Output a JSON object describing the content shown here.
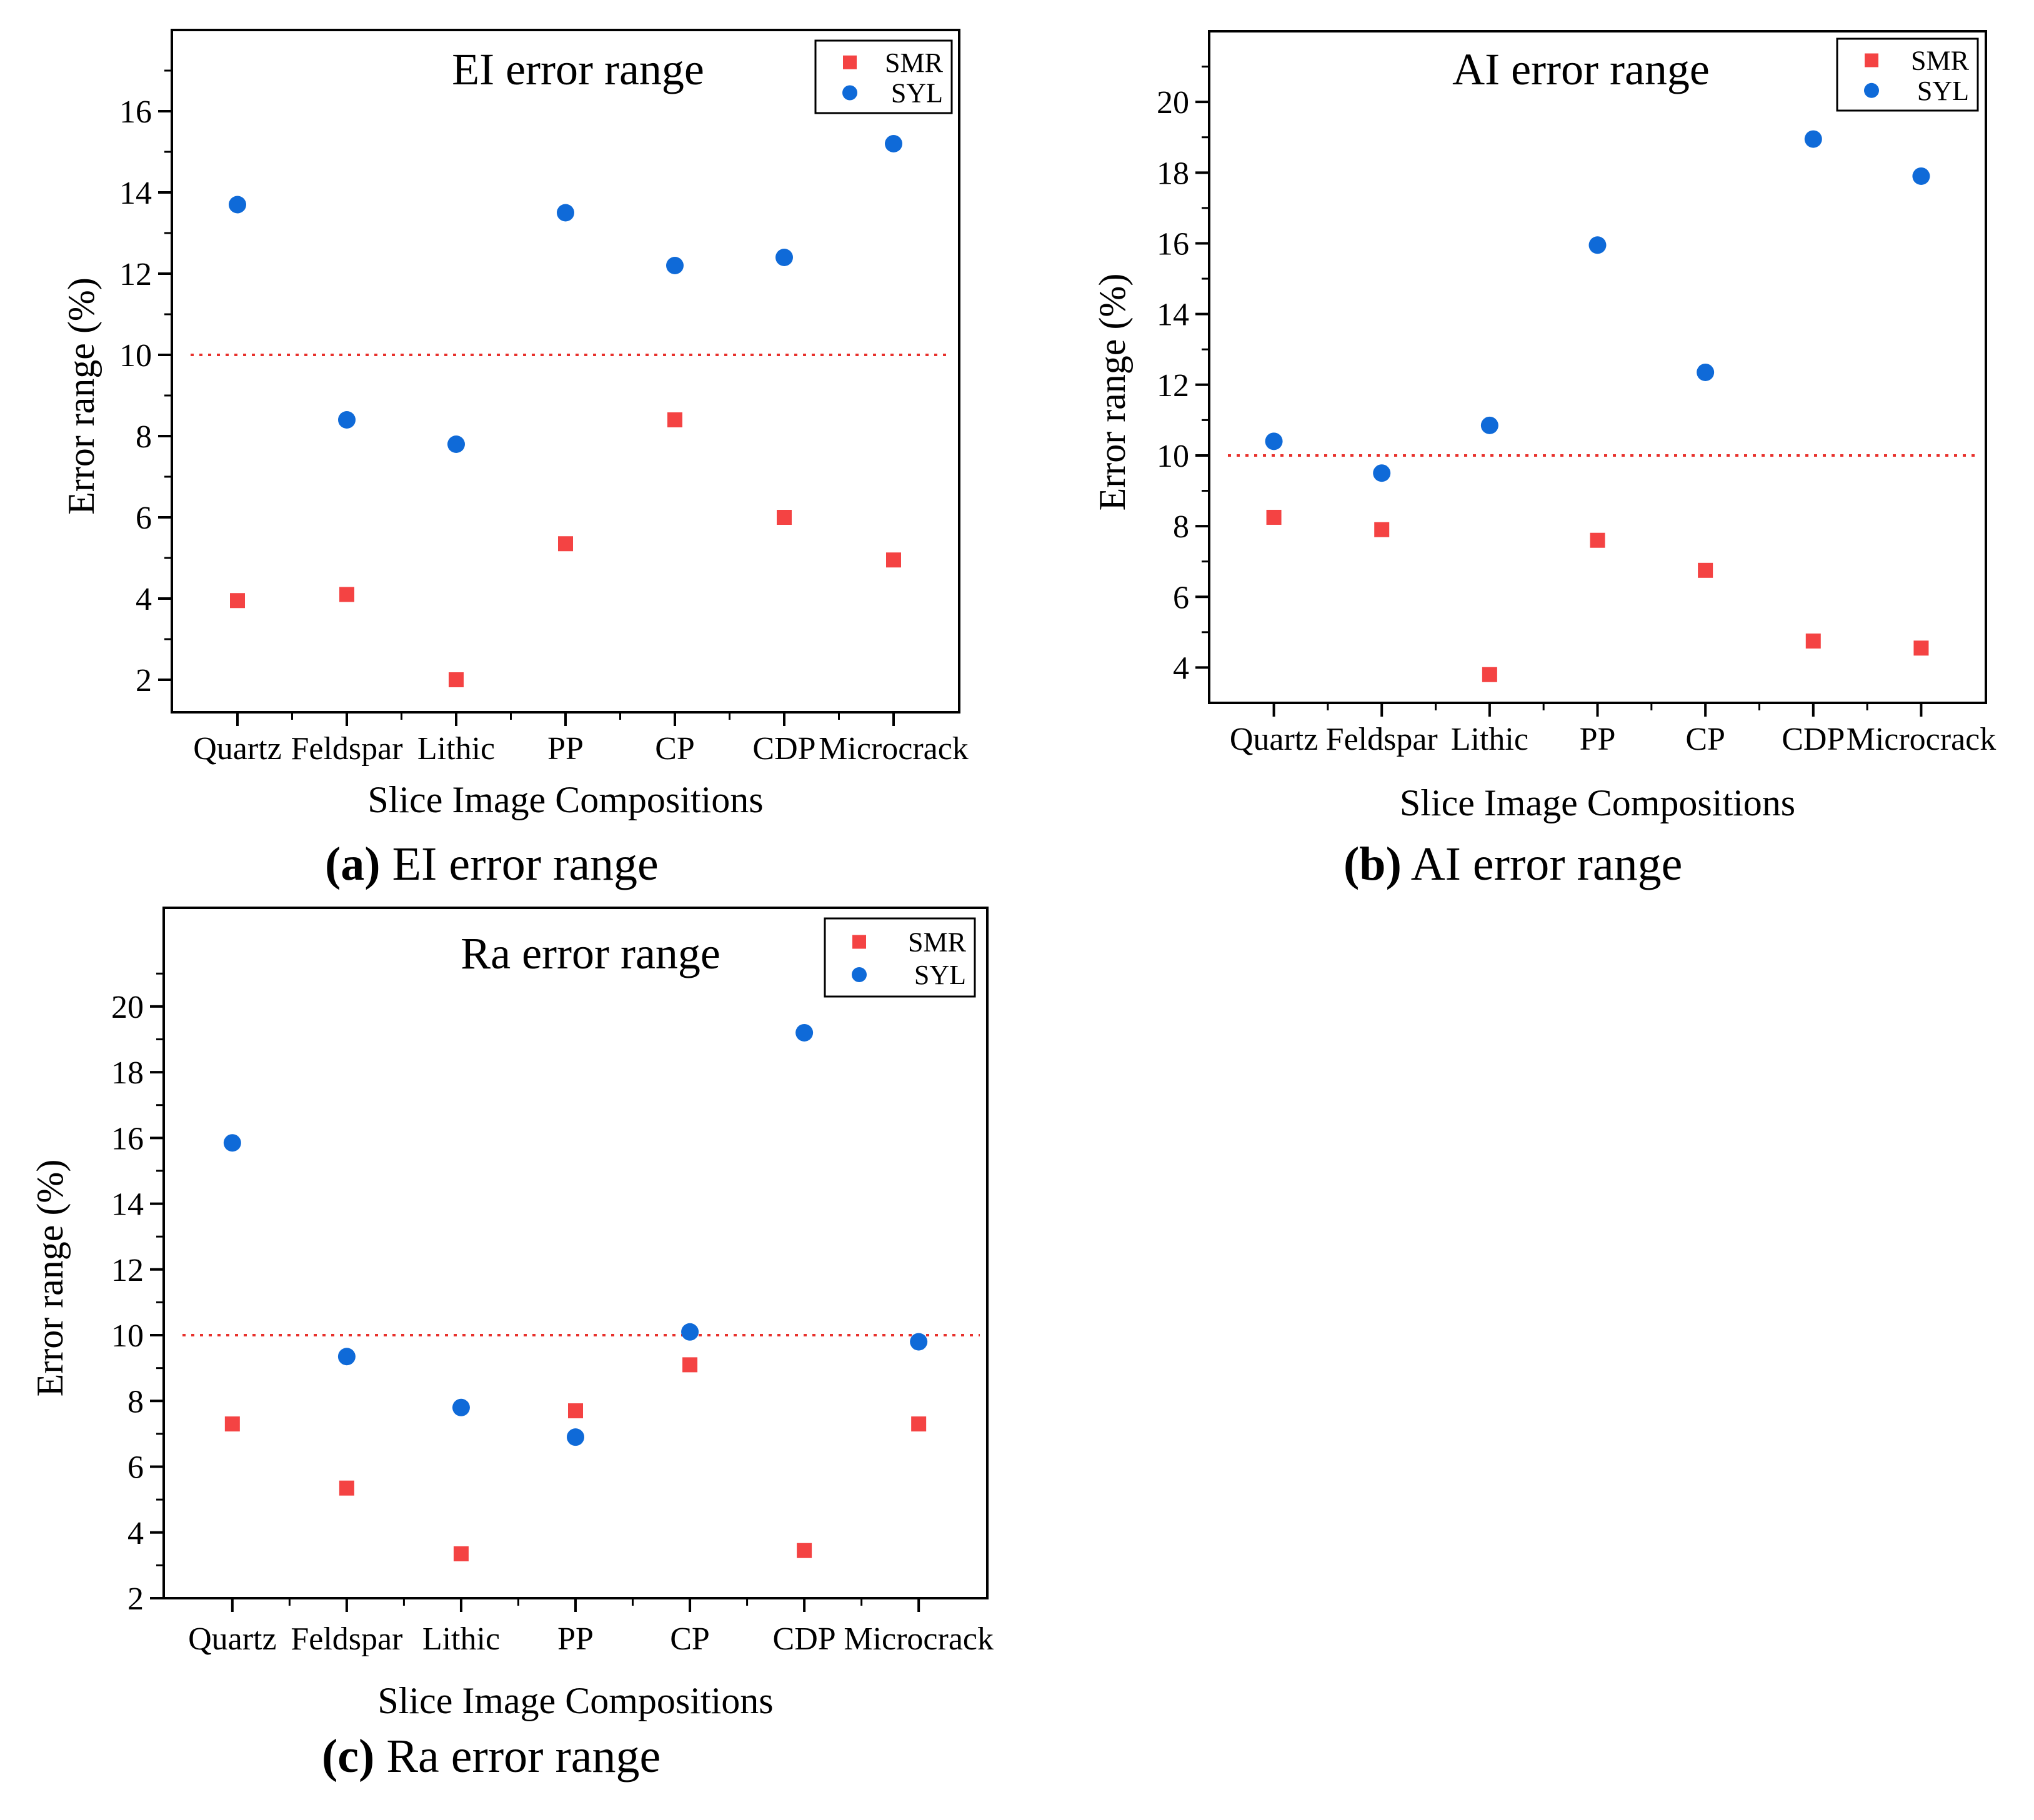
{
  "colors": {
    "smr": "#f44343",
    "syl": "#0f6ad8",
    "threshold": "#e8312c",
    "axis": "#000000"
  },
  "chart_data": [
    {
      "id": "a",
      "type": "scatter",
      "title": "EI error range",
      "caption_letter": "(a)",
      "caption_text": " EI error range",
      "xlabel": "Slice Image Compositions",
      "ylabel": "Error range (%)",
      "categories": [
        "Quartz",
        "Feldspar",
        "Lithic",
        "PP",
        "CP",
        "CDP",
        "Microcrack"
      ],
      "ylim": [
        1.2,
        18.0
      ],
      "yticks": [
        2,
        4,
        6,
        8,
        10,
        12,
        14,
        16
      ],
      "threshold": 10,
      "legend_position": "top-right",
      "series": [
        {
          "name": "SMR",
          "marker": "square",
          "values": [
            3.95,
            4.1,
            2.0,
            5.35,
            8.4,
            6.0,
            4.95
          ]
        },
        {
          "name": "SYL",
          "marker": "circle",
          "values": [
            13.7,
            8.4,
            7.8,
            13.5,
            12.2,
            12.4,
            15.2
          ]
        }
      ]
    },
    {
      "id": "b",
      "type": "scatter",
      "title": "AI error range",
      "caption_letter": "(b)",
      "caption_text": " AI error range",
      "xlabel": "Slice Image Compositions",
      "ylabel": "Error range (%)",
      "categories": [
        "Quartz",
        "Feldspar",
        "Lithic",
        "PP",
        "CP",
        "CDP",
        "Microcrack"
      ],
      "ylim": [
        3.0,
        22.0
      ],
      "yticks": [
        4,
        6,
        8,
        10,
        12,
        14,
        16,
        18,
        20
      ],
      "threshold": 10,
      "legend_position": "top-right",
      "series": [
        {
          "name": "SMR",
          "marker": "square",
          "values": [
            8.25,
            7.9,
            3.8,
            7.6,
            6.75,
            4.75,
            4.55
          ]
        },
        {
          "name": "SYL",
          "marker": "circle",
          "values": [
            10.4,
            9.5,
            10.85,
            15.95,
            12.35,
            18.95,
            17.9
          ]
        }
      ]
    },
    {
      "id": "c",
      "type": "scatter",
      "title": "Ra error range",
      "caption_letter": "(c)",
      "caption_text": " Ra error range",
      "xlabel": "Slice Image Compositions",
      "ylabel": "Error range (%)",
      "categories": [
        "Quartz",
        "Feldspar",
        "Lithic",
        "PP",
        "CP",
        "CDP",
        "Microcrack"
      ],
      "ylim": [
        2.0,
        23.0
      ],
      "yticks": [
        2,
        4,
        6,
        8,
        10,
        12,
        14,
        16,
        18,
        20
      ],
      "threshold": 10,
      "legend_position": "top-right",
      "series": [
        {
          "name": "SMR",
          "marker": "square",
          "values": [
            7.3,
            5.35,
            3.35,
            7.7,
            9.1,
            3.45,
            7.3
          ]
        },
        {
          "name": "SYL",
          "marker": "circle",
          "values": [
            15.85,
            9.35,
            7.8,
            6.9,
            10.1,
            19.2,
            9.8
          ]
        }
      ]
    }
  ]
}
